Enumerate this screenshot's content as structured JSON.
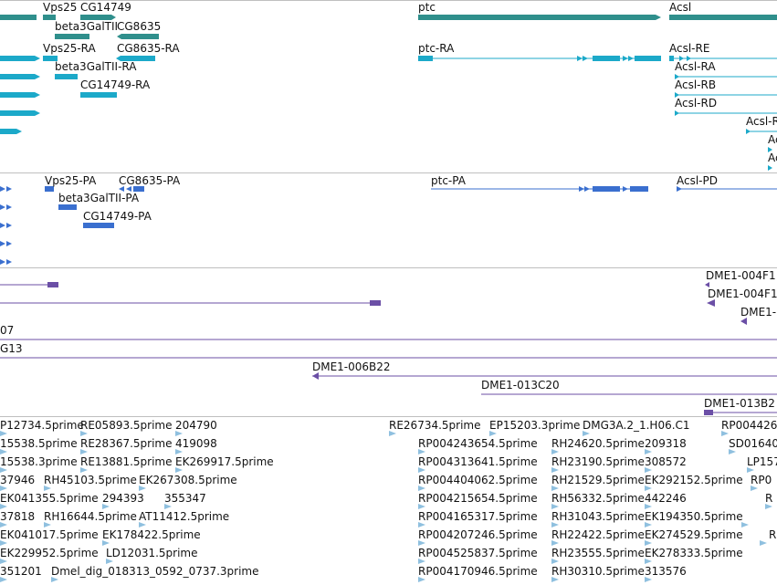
{
  "colors": {
    "gene": "#2f8f8c",
    "mrna": "#1ca9c9",
    "cds": "#3a6fcf",
    "clone": "#6b4fa6",
    "est": "#8fc0df",
    "separator": "#bfbfbf"
  },
  "tracks": {
    "genes": {
      "features": [
        {
          "label": "Vps25"
        },
        {
          "label": "CG14749"
        },
        {
          "label": "beta3GalTII"
        },
        {
          "label": "CG8635"
        },
        {
          "label": "ptc"
        },
        {
          "label": "Acsl"
        }
      ]
    },
    "transcripts": {
      "features": [
        {
          "label": "Vps25-RA"
        },
        {
          "label": "CG8635-RA"
        },
        {
          "label": "beta3GalTII-RA"
        },
        {
          "label": "CG14749-RA"
        },
        {
          "label": "ptc-RA"
        },
        {
          "label": "Acsl-RE"
        },
        {
          "label": "Acsl-RA"
        },
        {
          "label": "Acsl-RB"
        },
        {
          "label": "Acsl-RD"
        },
        {
          "label": "Acsl-R"
        },
        {
          "label": "Ac"
        },
        {
          "label": "Ac"
        }
      ]
    },
    "proteins": {
      "features": [
        {
          "label": "Vps25-PA"
        },
        {
          "label": "CG8635-PA"
        },
        {
          "label": "beta3GalTII-PA"
        },
        {
          "label": "CG14749-PA"
        },
        {
          "label": "ptc-PA"
        },
        {
          "label": "Acsl-PD"
        }
      ]
    },
    "clones": {
      "features": [
        {
          "label": "DME1-004F1"
        },
        {
          "label": "DME1-004F1"
        },
        {
          "label": "DME1-"
        },
        {
          "label": "07"
        },
        {
          "label": "G13"
        },
        {
          "label": "DME1-006B22"
        },
        {
          "label": "DME1-013C20"
        },
        {
          "label": "DME1-013B2"
        }
      ]
    },
    "ests": {
      "features": [
        {
          "label": "P12734.5prime"
        },
        {
          "label": "RE05893.5prime"
        },
        {
          "label": "204790"
        },
        {
          "label": "RE26734.5prime"
        },
        {
          "label": "EP15203.3prime"
        },
        {
          "label": "DMG3A.2_1.H06.C1"
        },
        {
          "label": "RP004426"
        },
        {
          "label": "15538.5prime"
        },
        {
          "label": "RE28367.5prime"
        },
        {
          "label": "419098"
        },
        {
          "label": "RP004243654.5prime"
        },
        {
          "label": "RH24620.5prime"
        },
        {
          "label": "209318"
        },
        {
          "label": "SD01640"
        },
        {
          "label": "15538.3prime"
        },
        {
          "label": "RE13881.5prime"
        },
        {
          "label": "EK269917.5prime"
        },
        {
          "label": "RP004313641.5prime"
        },
        {
          "label": "RH23190.5prime"
        },
        {
          "label": "308572"
        },
        {
          "label": "LP157"
        },
        {
          "label": "37946"
        },
        {
          "label": "RH45103.5prime"
        },
        {
          "label": "EK267308.5prime"
        },
        {
          "label": "RP004404062.5prime"
        },
        {
          "label": "RH21529.5prime"
        },
        {
          "label": "EK292152.5prime"
        },
        {
          "label": "RP0"
        },
        {
          "label": "EK041355.5prime"
        },
        {
          "label": "294393"
        },
        {
          "label": "355347"
        },
        {
          "label": "RP004215654.5prime"
        },
        {
          "label": "RH56332.5prime"
        },
        {
          "label": "442246"
        },
        {
          "label": "R"
        },
        {
          "label": "37818"
        },
        {
          "label": "RH16644.5prime"
        },
        {
          "label": "AT11412.5prime"
        },
        {
          "label": "RP004165317.5prime"
        },
        {
          "label": "RH31043.5prime"
        },
        {
          "label": "EK194350.5prime"
        },
        {
          "label": "EK041017.5prime"
        },
        {
          "label": "EK178422.5prime"
        },
        {
          "label": "RP004207246.5prime"
        },
        {
          "label": "RH22422.5prime"
        },
        {
          "label": "EK274529.5prime"
        },
        {
          "label": "R"
        },
        {
          "label": "EK229952.5prime"
        },
        {
          "label": "LD12031.5prime"
        },
        {
          "label": "RP004525837.5prime"
        },
        {
          "label": "RH23555.5prime"
        },
        {
          "label": "EK278333.5prime"
        },
        {
          "label": "351201"
        },
        {
          "label": "Dmel_dig_018313_0592_0737.3prime"
        },
        {
          "label": "RP004170946.5prime"
        },
        {
          "label": "RH30310.5prime"
        },
        {
          "label": "313576"
        }
      ]
    }
  }
}
